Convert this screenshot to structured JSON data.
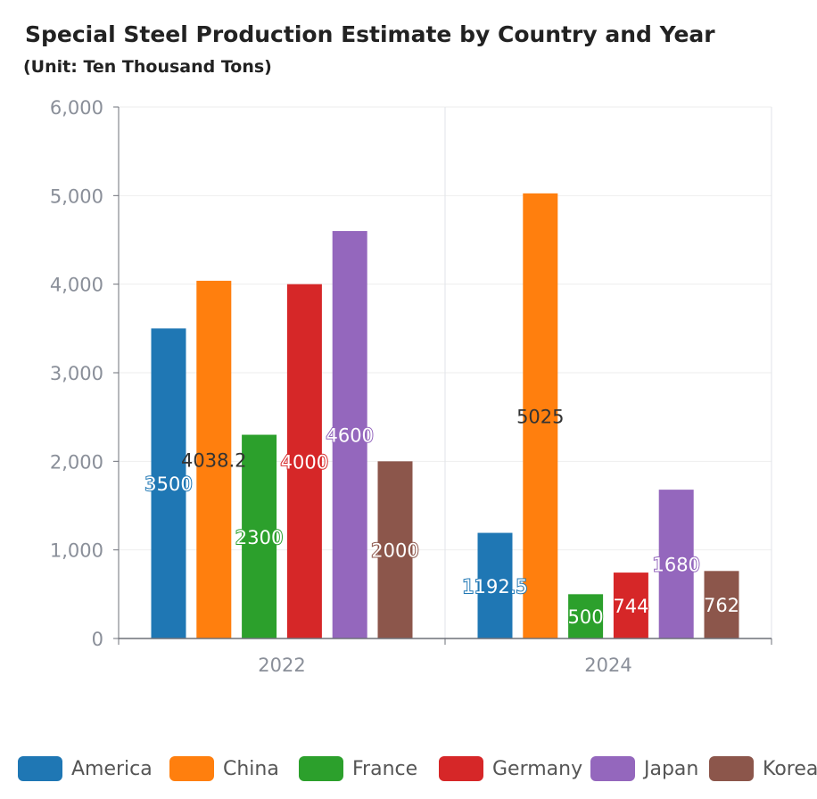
{
  "title": "Special Steel Production Estimate by Country and Year",
  "subtitle": "(Unit: Ten Thousand Tons)",
  "chart_data": {
    "type": "bar",
    "title": "Special Steel Production Estimate by Country and Year",
    "subtitle": "(Unit: Ten Thousand Tons)",
    "xlabel": "",
    "ylabel": "",
    "categories": [
      "2022",
      "2024"
    ],
    "ylim": [
      0,
      6000
    ],
    "yticks": [
      "0",
      "1,000",
      "2,000",
      "3,000",
      "4,000",
      "5,000",
      "6,000"
    ],
    "grid": true,
    "legend_position": "bottom",
    "series": [
      {
        "name": "America",
        "color": "#1f77b4",
        "values": [
          3500,
          1192.5
        ],
        "labels": [
          "3500",
          "1192.5"
        ]
      },
      {
        "name": "China",
        "color": "#ff7f0e",
        "values": [
          4038.2,
          5025
        ],
        "labels": [
          "4038.2",
          "5025"
        ]
      },
      {
        "name": "France",
        "color": "#2ca02c",
        "values": [
          2300,
          500
        ],
        "labels": [
          "2300",
          "500"
        ]
      },
      {
        "name": "Germany",
        "color": "#d62728",
        "values": [
          4000,
          744
        ],
        "labels": [
          "4000",
          "744"
        ]
      },
      {
        "name": "Japan",
        "color": "#9467bd",
        "values": [
          4600,
          1680
        ],
        "labels": [
          "4600",
          "1680"
        ]
      },
      {
        "name": "Korea",
        "color": "#8c564b",
        "values": [
          2000,
          762
        ],
        "labels": [
          "2000",
          "762"
        ]
      }
    ]
  }
}
